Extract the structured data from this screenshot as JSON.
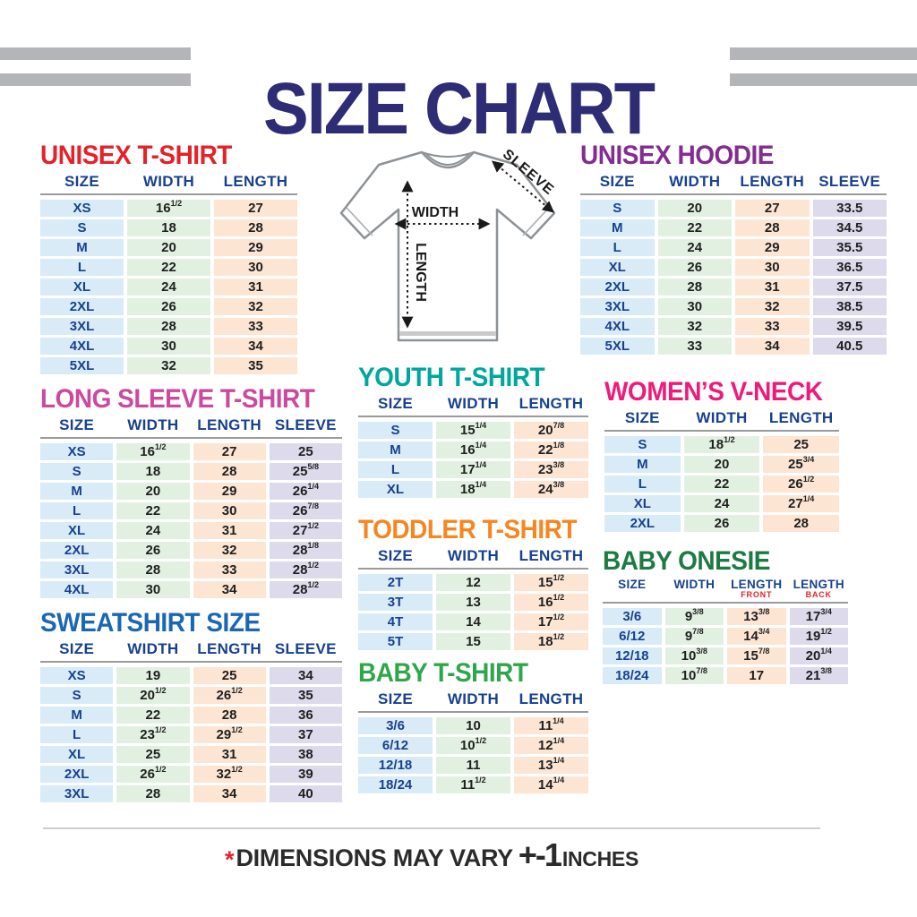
{
  "header": {
    "title": "SIZE CHART",
    "title_color": "#2e2c74"
  },
  "diagram": {
    "width_label": "WIDTH",
    "length_label": "LENGTH",
    "sleeve_label": "SLEEVE"
  },
  "footer": {
    "asterisk": "*",
    "text": "DIMENSIONS MAY VARY",
    "tolerance": "+-1",
    "unit": "INCHES"
  },
  "colors": {
    "row_blue": "#d8ebf7",
    "row_green": "#e2f0e2",
    "row_peach": "#fce5d3",
    "row_lavender": "#dcdaeb",
    "header_navy": "#17418f",
    "stripe_gray": "#b4b5b9"
  },
  "tables": [
    {
      "id": "unisex-tshirt",
      "title": "UNISEX T-SHIRT",
      "title_color": "#e3232a",
      "headers": [
        "SIZE",
        "WIDTH",
        "LENGTH"
      ],
      "col_colors": [
        "blue",
        "green",
        "peach"
      ],
      "rows": [
        [
          "XS",
          "16^1/2",
          "27"
        ],
        [
          "S",
          "18",
          "28"
        ],
        [
          "M",
          "20",
          "29"
        ],
        [
          "L",
          "22",
          "30"
        ],
        [
          "XL",
          "24",
          "31"
        ],
        [
          "2XL",
          "26",
          "32"
        ],
        [
          "3XL",
          "28",
          "33"
        ],
        [
          "4XL",
          "30",
          "34"
        ],
        [
          "5XL",
          "32",
          "35"
        ]
      ]
    },
    {
      "id": "unisex-hoodie",
      "title": "UNISEX HOODIE",
      "title_color": "#822d8f",
      "headers": [
        "SIZE",
        "WIDTH",
        "LENGTH",
        "SLEEVE"
      ],
      "col_colors": [
        "blue",
        "green",
        "peach",
        "lavender"
      ],
      "rows": [
        [
          "S",
          "20",
          "27",
          "33.5"
        ],
        [
          "M",
          "22",
          "28",
          "34.5"
        ],
        [
          "L",
          "24",
          "29",
          "35.5"
        ],
        [
          "XL",
          "26",
          "30",
          "36.5"
        ],
        [
          "2XL",
          "28",
          "31",
          "37.5"
        ],
        [
          "3XL",
          "30",
          "32",
          "38.5"
        ],
        [
          "4XL",
          "32",
          "33",
          "39.5"
        ],
        [
          "5XL",
          "33",
          "34",
          "40.5"
        ]
      ]
    },
    {
      "id": "long-sleeve",
      "title": "LONG SLEEVE T-SHIRT",
      "title_color": "#c94a9f",
      "headers": [
        "SIZE",
        "WIDTH",
        "LENGTH",
        "SLEEVE"
      ],
      "col_colors": [
        "blue",
        "green",
        "peach",
        "lavender"
      ],
      "rows": [
        [
          "XS",
          "16^1/2",
          "27",
          "25"
        ],
        [
          "S",
          "18",
          "28",
          "25^5/8"
        ],
        [
          "M",
          "20",
          "29",
          "26^1/4"
        ],
        [
          "L",
          "22",
          "30",
          "26^7/8"
        ],
        [
          "XL",
          "24",
          "31",
          "27^1/2"
        ],
        [
          "2XL",
          "26",
          "32",
          "28^1/8"
        ],
        [
          "3XL",
          "28",
          "33",
          "28^1/2"
        ],
        [
          "4XL",
          "30",
          "34",
          "28^1/2"
        ]
      ]
    },
    {
      "id": "youth",
      "title": "YOUTH T-SHIRT",
      "title_color": "#00a79c",
      "headers": [
        "SIZE",
        "WIDTH",
        "LENGTH"
      ],
      "col_colors": [
        "blue",
        "green",
        "peach"
      ],
      "rows": [
        [
          "S",
          "15^1/4",
          "20^7/8"
        ],
        [
          "M",
          "16^1/4",
          "22^1/8"
        ],
        [
          "L",
          "17^1/4",
          "23^3/8"
        ],
        [
          "XL",
          "18^1/4",
          "24^3/8"
        ]
      ]
    },
    {
      "id": "womens-vneck",
      "title": "WOMEN’S V-NECK",
      "title_color": "#ee1b7b",
      "headers": [
        "SIZE",
        "WIDTH",
        "LENGTH"
      ],
      "col_colors": [
        "blue",
        "green",
        "peach"
      ],
      "rows": [
        [
          "S",
          "18^1/2",
          "25"
        ],
        [
          "M",
          "20",
          "25^3/4"
        ],
        [
          "L",
          "22",
          "26^1/2"
        ],
        [
          "XL",
          "24",
          "27^1/4"
        ],
        [
          "2XL",
          "26",
          "28"
        ]
      ]
    },
    {
      "id": "toddler",
      "title": "TODDLER T-SHIRT",
      "title_color": "#f6861f",
      "headers": [
        "SIZE",
        "WIDTH",
        "LENGTH"
      ],
      "col_colors": [
        "blue",
        "green",
        "peach"
      ],
      "rows": [
        [
          "2T",
          "12",
          "15^1/2"
        ],
        [
          "3T",
          "13",
          "16^1/2"
        ],
        [
          "4T",
          "14",
          "17^1/2"
        ],
        [
          "5T",
          "15",
          "18^1/2"
        ]
      ]
    },
    {
      "id": "baby-onesie",
      "title": "BABY ONESIE",
      "title_color": "#1d7a41",
      "small_headers": true,
      "headers": [
        "SIZE",
        "WIDTH",
        {
          "label": "LENGTH",
          "sub": "FRONT"
        },
        {
          "label": "LENGTH",
          "sub": "BACK"
        }
      ],
      "col_colors": [
        "blue",
        "green",
        "peach",
        "lavender"
      ],
      "rows": [
        [
          "3/6",
          "9^3/8",
          "13^3/8",
          "17^3/4"
        ],
        [
          "6/12",
          "9^7/8",
          "14^3/4",
          "19^1/2"
        ],
        [
          "12/18",
          "10^3/8",
          "15^7/8",
          "20^1/4"
        ],
        [
          "18/24",
          "10^7/8",
          "17",
          "21^3/8"
        ]
      ]
    },
    {
      "id": "sweatshirt",
      "title": "SWEATSHIRT SIZE",
      "title_color": "#1a67b2",
      "headers": [
        "SIZE",
        "WIDTH",
        "LENGTH",
        "SLEEVE"
      ],
      "col_colors": [
        "blue",
        "green",
        "peach",
        "lavender"
      ],
      "rows": [
        [
          "XS",
          "19",
          "25",
          "34"
        ],
        [
          "S",
          "20^1/2",
          "26^1/2",
          "35"
        ],
        [
          "M",
          "22",
          "28",
          "36"
        ],
        [
          "L",
          "23^1/2",
          "29^1/2",
          "37"
        ],
        [
          "XL",
          "25",
          "31",
          "38"
        ],
        [
          "2XL",
          "26^1/2",
          "32^1/2",
          "39"
        ],
        [
          "3XL",
          "28",
          "34",
          "40"
        ]
      ]
    },
    {
      "id": "baby-tshirt",
      "title": "BABY T-SHIRT",
      "title_color": "#2fa64c",
      "headers": [
        "SIZE",
        "WIDTH",
        "LENGTH"
      ],
      "col_colors": [
        "blue",
        "green",
        "peach"
      ],
      "rows": [
        [
          "3/6",
          "10",
          "11^1/4"
        ],
        [
          "6/12",
          "10^1/2",
          "12^1/4"
        ],
        [
          "12/18",
          "11",
          "13^1/4"
        ],
        [
          "18/24",
          "11^1/2",
          "14^1/4"
        ]
      ]
    }
  ]
}
